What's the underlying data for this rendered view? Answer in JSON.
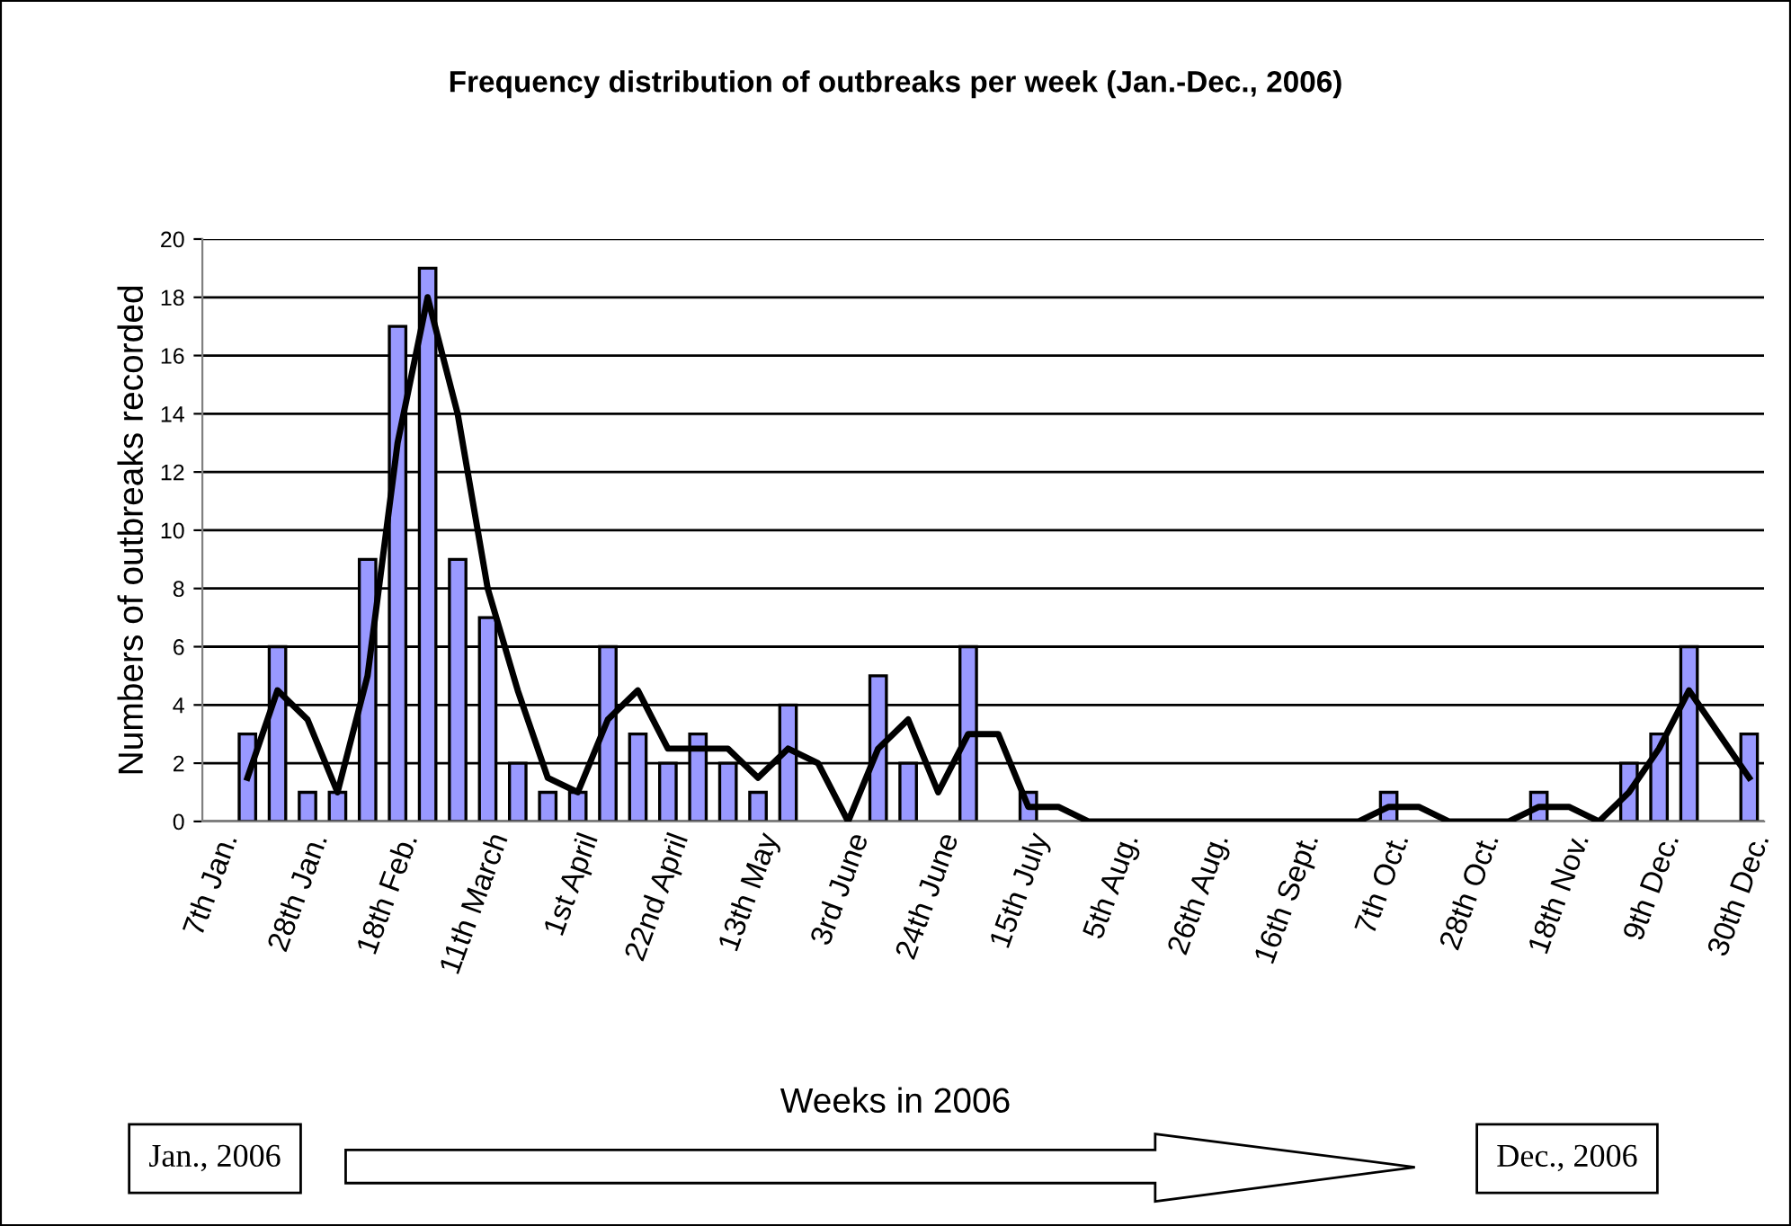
{
  "chart_data": {
    "type": "bar",
    "title": "Frequency distribution of outbreaks per week (Jan.-Dec., 2006)",
    "xlabel": "Weeks in 2006",
    "ylabel": "Numbers of outbreaks recorded",
    "categories": [
      "7th Jan.",
      null,
      null,
      "28th Jan.",
      null,
      null,
      "18th Feb.",
      null,
      null,
      "11th March",
      null,
      null,
      "1st April",
      null,
      null,
      "22nd April",
      null,
      null,
      "13th May",
      null,
      null,
      "3rd June",
      null,
      null,
      "24th June",
      null,
      null,
      "15th July",
      null,
      null,
      "5th Aug.",
      null,
      null,
      "26th Aug.",
      null,
      null,
      "16th Sept.",
      null,
      null,
      "7th Oct.",
      null,
      null,
      "28th Oct.",
      null,
      null,
      "18th Nov.",
      null,
      null,
      "9th Dec.",
      null,
      null,
      "30th Dec."
    ],
    "series": [
      {
        "color": "#9999ff",
        "values": [
          0,
          3,
          6,
          1,
          1,
          9,
          17,
          19,
          9,
          7,
          2,
          1,
          1,
          6,
          3,
          2,
          3,
          2,
          1,
          4,
          0,
          0,
          5,
          2,
          0,
          6,
          0,
          1,
          0,
          0,
          0,
          0,
          0,
          0,
          0,
          0,
          0,
          0,
          0,
          1,
          0,
          0,
          0,
          0,
          1,
          0,
          0,
          2,
          3,
          6,
          0,
          3
        ]
      },
      {
        "type": "line",
        "color": "#000000",
        "values": [
          null,
          1.5,
          4.5,
          3.5,
          1,
          5,
          13,
          18,
          14,
          8,
          4.5,
          1.5,
          1,
          3.5,
          4.5,
          2.5,
          2.5,
          2.5,
          1.5,
          2.5,
          2,
          0,
          2.5,
          3.5,
          1,
          3,
          3,
          0.5,
          0.5,
          0,
          0,
          0,
          0,
          0,
          0,
          0,
          0,
          0,
          0,
          0.5,
          0.5,
          0,
          0,
          0,
          0.5,
          0.5,
          0,
          1,
          2.5,
          4.5,
          3,
          1.5
        ]
      }
    ],
    "ylim": [
      0,
      20
    ],
    "yticks": [
      0,
      2,
      4,
      6,
      8,
      10,
      12,
      14,
      16,
      18,
      20
    ],
    "grid": "y",
    "legend": false,
    "marker": "none",
    "line_style": "solid",
    "annotations": [
      "Jan., 2006",
      "Dec., 2006"
    ]
  }
}
